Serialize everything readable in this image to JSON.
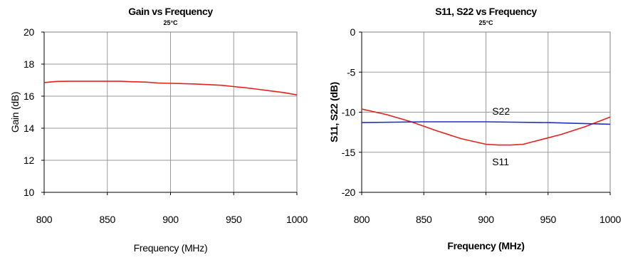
{
  "chart_data": [
    {
      "type": "line",
      "title": "Gain vs Frequency",
      "subtitle": "25°C",
      "xlabel": "Frequency (MHz)",
      "ylabel": "Gain (dB)",
      "xlim": [
        800,
        1000
      ],
      "ylim": [
        10,
        20
      ],
      "xticks": [
        800,
        850,
        900,
        950,
        1000
      ],
      "yticks": [
        10,
        12,
        14,
        16,
        18,
        20
      ],
      "grid": true,
      "series": [
        {
          "color": "#e8201c",
          "x": [
            800,
            810,
            820,
            830,
            840,
            850,
            860,
            870,
            880,
            890,
            900,
            910,
            920,
            930,
            940,
            950,
            960,
            970,
            980,
            990,
            1000
          ],
          "y": [
            16.85,
            16.92,
            16.93,
            16.93,
            16.93,
            16.93,
            16.93,
            16.9,
            16.88,
            16.82,
            16.8,
            16.78,
            16.76,
            16.72,
            16.68,
            16.6,
            16.52,
            16.42,
            16.32,
            16.22,
            16.08
          ]
        }
      ]
    },
    {
      "type": "line",
      "title": "S11, S22 vs Frequency",
      "subtitle": "25°C",
      "xlabel": "Frequency (MHz)",
      "ylabel": "S11, S22 (dB)",
      "xlim": [
        800,
        1000
      ],
      "ylim": [
        -20,
        0
      ],
      "xticks": [
        800,
        850,
        900,
        950,
        1000
      ],
      "yticks": [
        -20,
        -15,
        -10,
        -5,
        0
      ],
      "grid": true,
      "annotations": [
        {
          "text": "S22",
          "x": 905,
          "y": -10.3
        },
        {
          "text": "S11",
          "x": 905,
          "y": -16.6
        }
      ],
      "series": [
        {
          "name": "S11",
          "color": "#e8201c",
          "x": [
            800,
            820,
            840,
            860,
            880,
            900,
            910,
            920,
            930,
            940,
            960,
            980,
            1000
          ],
          "y": [
            -9.6,
            -10.3,
            -11.2,
            -12.3,
            -13.3,
            -14.0,
            -14.1,
            -14.1,
            -14.0,
            -13.6,
            -12.8,
            -11.8,
            -10.6
          ]
        },
        {
          "name": "S22",
          "color": "#1f2fc8",
          "x": [
            800,
            850,
            900,
            950,
            1000
          ],
          "y": [
            -11.3,
            -11.2,
            -11.2,
            -11.3,
            -11.5
          ]
        }
      ]
    }
  ]
}
